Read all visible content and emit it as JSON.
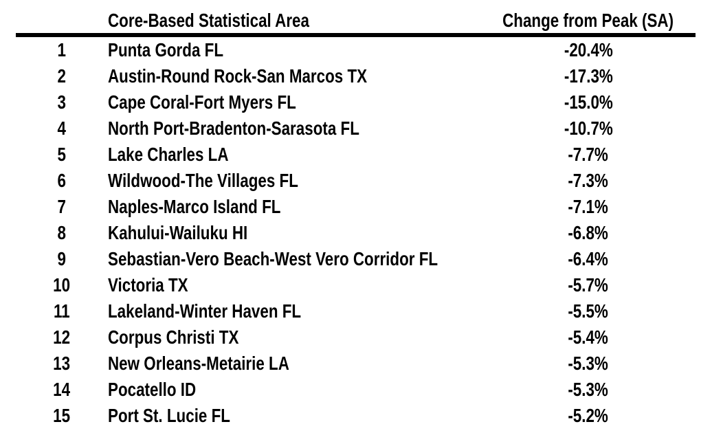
{
  "colors": {
    "background": "#ffffff",
    "text": "#000000",
    "header_rule": "#000000"
  },
  "chart_data": {
    "type": "table",
    "columns": [
      "",
      "Core-Based Statistical Area",
      "Change from Peak (SA)"
    ],
    "rows": [
      [
        "1",
        "Punta Gorda FL",
        "-20.4%"
      ],
      [
        "2",
        "Austin-Round Rock-San Marcos TX",
        "-17.3%"
      ],
      [
        "3",
        "Cape Coral-Fort Myers FL",
        "-15.0%"
      ],
      [
        "4",
        "North Port-Bradenton-Sarasota FL",
        "-10.7%"
      ],
      [
        "5",
        "Lake Charles LA",
        "-7.7%"
      ],
      [
        "6",
        "Wildwood-The Villages FL",
        "-7.3%"
      ],
      [
        "7",
        "Naples-Marco Island FL",
        "-7.1%"
      ],
      [
        "8",
        "Kahului-Wailuku HI",
        "-6.8%"
      ],
      [
        "9",
        "Sebastian-Vero Beach-West Vero Corridor FL",
        "-6.4%"
      ],
      [
        "10",
        "Victoria TX",
        "-5.7%"
      ],
      [
        "11",
        "Lakeland-Winter Haven FL",
        "-5.5%"
      ],
      [
        "12",
        "Corpus Christi TX",
        "-5.4%"
      ],
      [
        "13",
        "New Orleans-Metairie LA",
        "-5.3%"
      ],
      [
        "14",
        "Pocatello ID",
        "-5.3%"
      ],
      [
        "15",
        "Port St. Lucie FL",
        "-5.2%"
      ]
    ],
    "change_from_peak_pct": [
      -20.4,
      -17.3,
      -15.0,
      -10.7,
      -7.7,
      -7.3,
      -7.1,
      -6.8,
      -6.4,
      -5.7,
      -5.5,
      -5.4,
      -5.3,
      -5.3,
      -5.2
    ],
    "title": "",
    "legend": false,
    "grid": false
  }
}
